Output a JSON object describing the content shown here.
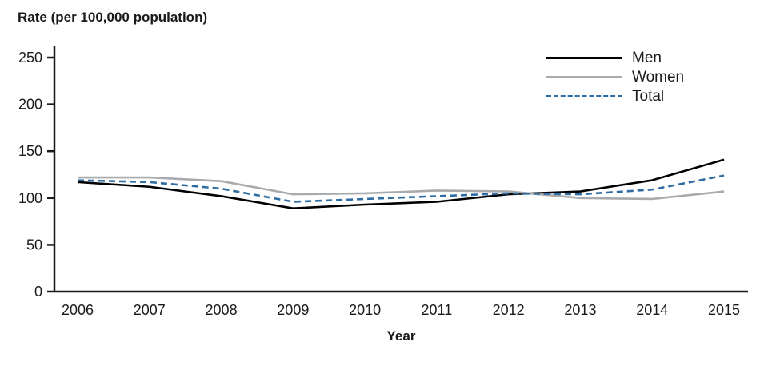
{
  "chart_data": {
    "type": "line",
    "title": "Rate (per 100,000 population)",
    "xlabel": "Year",
    "ylabel": "Rate (per 100,000 population)",
    "x": [
      2006,
      2007,
      2008,
      2009,
      2010,
      2011,
      2012,
      2013,
      2014,
      2015
    ],
    "ylim": [
      0,
      250
    ],
    "yticks": [
      0,
      50,
      100,
      150,
      200,
      250
    ],
    "grid": false,
    "legend_position": "top-right",
    "axis_color": "#1a1a1a",
    "series": [
      {
        "name": "Men",
        "color": "#000000",
        "style": "solid",
        "values": [
          117,
          112,
          102,
          89,
          93,
          96,
          104,
          107,
          119,
          141
        ]
      },
      {
        "name": "Women",
        "color": "#a8aaad",
        "style": "solid",
        "values": [
          122,
          122,
          118,
          104,
          105,
          108,
          107,
          100,
          99,
          107
        ]
      },
      {
        "name": "Total",
        "color": "#2e6da4",
        "style": "dashed",
        "values": [
          119,
          117,
          110,
          96,
          99,
          102,
          105,
          104,
          109,
          124
        ]
      }
    ]
  }
}
